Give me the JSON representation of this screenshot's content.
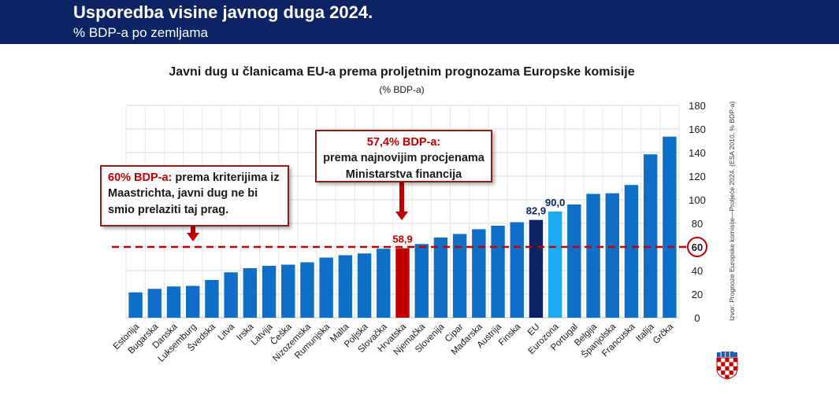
{
  "header": {
    "title": "Usporedba visine javnog duga 2024.",
    "subtitle": "% BDP-a po zemljama"
  },
  "callouts": {
    "threshold": {
      "highlight": "60% BDP-a:",
      "text": " prema kriterijima iz Maastrichta, javni dug ne bi smio prelaziti taj prag."
    },
    "ministry": {
      "highlight": "57,4% BDP-a:",
      "line1": "prema najnovijim procjenama",
      "line2": "Ministarstva financija"
    }
  },
  "source_note": "Izvor: Prognoze Europske komisije—Proljeće 2024. (ESA 2010, % BDP-a)",
  "chart_data": {
    "type": "bar",
    "title": "Javni dug u članicama EU-a prema proljetnim prognozama Europske komisije",
    "subtitle": "(% BDP-a)",
    "categories": [
      "Estonija",
      "Bugarska",
      "Danska",
      "Luksemburg",
      "Švedska",
      "Litva",
      "Irska",
      "Latvija",
      "Češka",
      "Nizozemska",
      "Rumunjska",
      "Malta",
      "Poljska",
      "Slovačka",
      "Hrvatska",
      "Njemačka",
      "Slovenija",
      "Cipar",
      "Mađarska",
      "Austrija",
      "Finska",
      "EU",
      "Eurozona",
      "Portugal",
      "Belgija",
      "Španjolska",
      "Francuska",
      "Italija",
      "Grčka"
    ],
    "values": [
      21.5,
      24.5,
      26.5,
      27,
      32,
      38.5,
      42,
      44,
      45,
      47,
      51,
      53,
      54.5,
      58.5,
      58.9,
      62.5,
      68,
      71,
      75,
      78,
      81,
      82.9,
      90.0,
      96,
      105,
      105.5,
      112.5,
      138.5,
      153.5
    ],
    "highlight": {
      "Hrvatska": {
        "color": "#c00000",
        "label": "58,9"
      },
      "EU": {
        "color": "#0c2463",
        "label": "82,9"
      },
      "Eurozona": {
        "color": "#1eaaf1",
        "label": "90,0"
      }
    },
    "default_color": "#0f6fc6",
    "ylim": [
      0,
      180
    ],
    "yticks": [
      0,
      20,
      40,
      60,
      80,
      100,
      120,
      140,
      160,
      180
    ],
    "threshold": {
      "value": 60,
      "label": "60",
      "color": "#c00000"
    },
    "grid": true,
    "xlabel": "",
    "ylabel": ""
  }
}
